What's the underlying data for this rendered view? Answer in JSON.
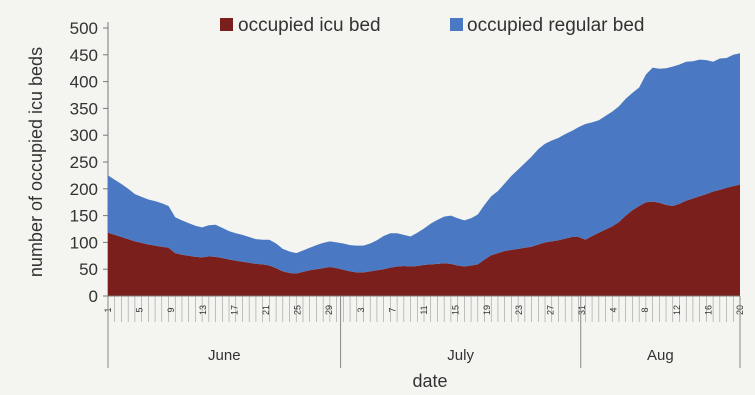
{
  "chart_data": {
    "type": "area",
    "stacked": true,
    "xlabel": "date",
    "ylabel": "number of occupied icu beds",
    "ylim": [
      0,
      500
    ],
    "yticks": [
      0,
      50,
      100,
      150,
      200,
      250,
      300,
      350,
      400,
      450,
      500
    ],
    "legend_position": "top",
    "grid": false,
    "months": [
      "June",
      "July",
      "Aug"
    ],
    "x_labels": [
      "1",
      "5",
      "9",
      "13",
      "17",
      "21",
      "25",
      "29",
      "3",
      "7",
      "11",
      "15",
      "19",
      "23",
      "27",
      "31",
      "4",
      "8",
      "12",
      "16",
      "20"
    ],
    "series": [
      {
        "name": "occupied icu bed",
        "color": "#7a1f1c",
        "values": [
          118,
          114,
          110,
          106,
          102,
          99,
          96,
          94,
          92,
          90,
          80,
          77,
          75,
          73,
          72,
          74,
          73,
          71,
          68,
          66,
          64,
          62,
          60,
          59,
          57,
          52,
          46,
          43,
          42,
          45,
          48,
          50,
          52,
          54,
          52,
          49,
          46,
          44,
          44,
          46,
          48,
          50,
          53,
          55,
          56,
          55,
          56,
          58,
          59,
          60,
          61,
          60,
          57,
          55,
          57,
          59,
          68,
          76,
          80,
          84,
          86,
          88,
          90,
          92,
          96,
          100,
          102,
          104,
          107,
          110,
          110,
          105,
          112,
          118,
          124,
          130,
          138,
          150,
          160,
          168,
          175,
          176,
          174,
          170,
          168,
          172,
          178,
          182,
          186,
          190,
          195,
          198,
          202,
          205,
          208
        ]
      },
      {
        "name": "occupied regular bed",
        "color": "#4a78c2",
        "values": [
          107,
          103,
          99,
          94,
          88,
          86,
          84,
          83,
          81,
          78,
          67,
          64,
          61,
          58,
          56,
          58,
          60,
          56,
          53,
          51,
          50,
          48,
          46,
          46,
          48,
          46,
          42,
          40,
          38,
          40,
          42,
          45,
          47,
          48,
          48,
          49,
          49,
          50,
          50,
          52,
          56,
          62,
          64,
          62,
          58,
          56,
          62,
          68,
          76,
          82,
          87,
          90,
          88,
          86,
          88,
          93,
          102,
          110,
          116,
          126,
          138,
          148,
          158,
          168,
          178,
          184,
          188,
          191,
          195,
          198,
          205,
          216,
          212,
          210,
          212,
          214,
          216,
          218,
          219,
          221,
          238,
          250,
          250,
          255,
          260,
          260,
          259,
          256,
          255,
          250,
          242,
          245,
          242,
          245,
          245
        ]
      }
    ]
  }
}
